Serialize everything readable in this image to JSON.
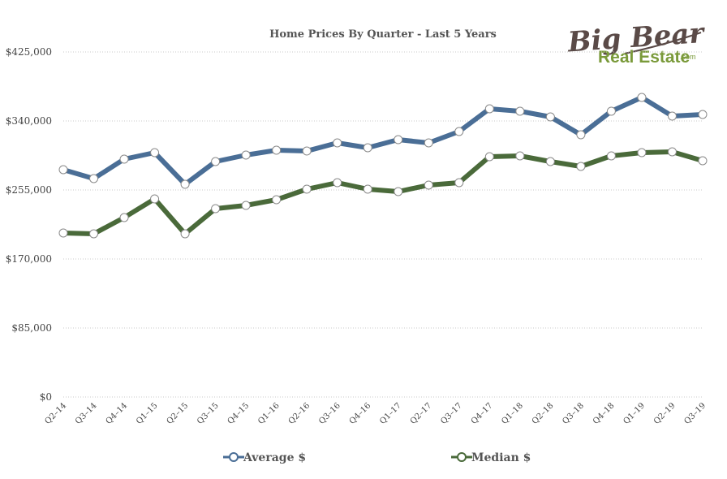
{
  "logo": {
    "brand": "Big Bear",
    "sub": "Real Estate",
    "suffix": ".com",
    "brand_color": "#5a4a47",
    "sub_color": "#7a9a3a"
  },
  "chart_data": {
    "type": "line",
    "title": "Home Prices By Quarter - Last 5 Years",
    "xlabel": "",
    "ylabel": "",
    "ylim": [
      0,
      425000
    ],
    "yticks": [
      0,
      85000,
      170000,
      255000,
      340000,
      425000
    ],
    "ytick_labels": [
      "$0",
      "$85,000",
      "$170,000",
      "$255,000",
      "$340,000",
      "$425,000"
    ],
    "grid": true,
    "legend_position": "bottom",
    "categories": [
      "Q2–14",
      "Q3–14",
      "Q4–14",
      "Q1–15",
      "Q2–15",
      "Q3–15",
      "Q4–15",
      "Q1–16",
      "Q2–16",
      "Q3–16",
      "Q4–16",
      "Q1–17",
      "Q2–17",
      "Q3–17",
      "Q4–17",
      "Q1–18",
      "Q2–18",
      "Q3–18",
      "Q4–18",
      "Q1–19",
      "Q2–19",
      "Q3–19"
    ],
    "series": [
      {
        "name": "Average $",
        "color": "#4a6e96",
        "values": [
          280000,
          269000,
          293000,
          301000,
          262000,
          290000,
          298000,
          304000,
          303000,
          313000,
          307000,
          317000,
          313000,
          327000,
          355000,
          352000,
          345000,
          323000,
          352000,
          369000,
          346000,
          348000
        ]
      },
      {
        "name": "Median $",
        "color": "#4a6a3a",
        "values": [
          202000,
          201000,
          221000,
          244000,
          201000,
          232000,
          236000,
          243000,
          256000,
          264000,
          256000,
          253000,
          261000,
          264000,
          296000,
          297000,
          290000,
          284000,
          297000,
          301000,
          302000,
          291000
        ]
      }
    ]
  }
}
